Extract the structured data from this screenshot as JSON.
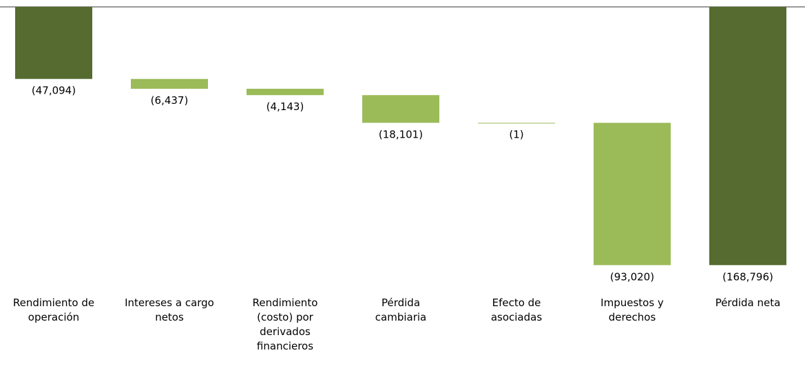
{
  "chart_data": {
    "type": "waterfall",
    "categories": [
      "Rendimiento de operación",
      "Intereses a cargo netos",
      "Rendimiento (costo) por derivados financieros",
      "Pérdida cambiaria",
      "Efecto de asociadas",
      "Impuestos y derechos",
      "Pérdida neta"
    ],
    "values": [
      -47094,
      -6437,
      -4143,
      -18101,
      -1,
      -93020,
      -168796
    ],
    "value_labels": [
      "(47,094)",
      "(6,437)",
      "(4,143)",
      "(18,101)",
      "(1)",
      "(93,020)",
      "(168,796)"
    ],
    "colors": [
      "#556b2f",
      "#9bbb59",
      "#9bbb59",
      "#9bbb59",
      "#9bbb59",
      "#9bbb59",
      "#556b2f"
    ],
    "totals": [
      6
    ],
    "ylim": [
      -170000,
      0
    ]
  }
}
